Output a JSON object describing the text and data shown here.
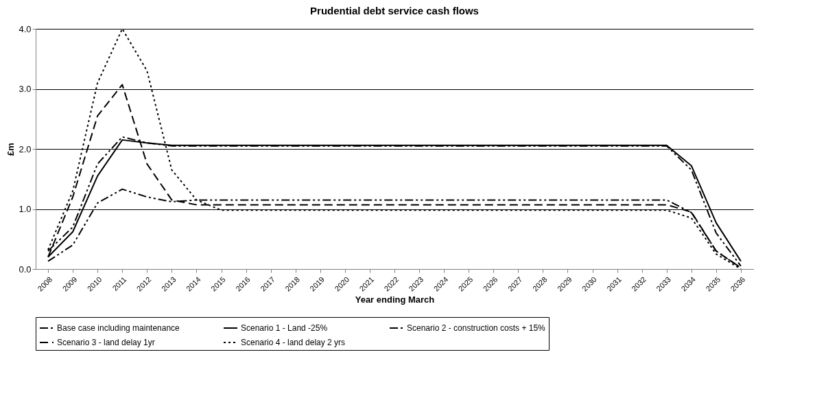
{
  "chart_data": {
    "type": "line",
    "title": "Prudential debt service cash flows",
    "xlabel": "Year ending March",
    "ylabel": "£m",
    "categories": [
      "2008",
      "2009",
      "2010",
      "2011",
      "2012",
      "2013",
      "2014",
      "2015",
      "2016",
      "2017",
      "2018",
      "2019",
      "2020",
      "2021",
      "2022",
      "2023",
      "2024",
      "2025",
      "2026",
      "2027",
      "2028",
      "2029",
      "2030",
      "2031",
      "2032",
      "2033",
      "2034",
      "2035",
      "2036"
    ],
    "ylim": [
      0,
      4
    ],
    "yticks": [
      {
        "value": 0,
        "label": "0.0"
      },
      {
        "value": 1,
        "label": "1.0"
      },
      {
        "value": 2,
        "label": "2.0"
      },
      {
        "value": 3,
        "label": "3.0"
      },
      {
        "value": 4,
        "label": "4.0"
      }
    ],
    "grid": "y",
    "legend": "bottom",
    "marker": "none",
    "series": [
      {
        "name": "Base case including maintenance",
        "color": "#000000",
        "line_style": "dashdot",
        "values": [
          0.13,
          0.4,
          1.1,
          1.33,
          1.2,
          1.12,
          1.15,
          1.15,
          1.15,
          1.15,
          1.15,
          1.15,
          1.15,
          1.15,
          1.15,
          1.15,
          1.15,
          1.15,
          1.15,
          1.15,
          1.15,
          1.15,
          1.15,
          1.15,
          1.15,
          1.15,
          0.94,
          0.3,
          0.02
        ]
      },
      {
        "name": "Scenario 1 - Land -25%",
        "color": "#000000",
        "line_style": "solid",
        "values": [
          0.2,
          0.62,
          1.55,
          2.15,
          2.1,
          2.06,
          2.06,
          2.06,
          2.06,
          2.06,
          2.06,
          2.06,
          2.06,
          2.06,
          2.06,
          2.06,
          2.06,
          2.06,
          2.06,
          2.06,
          2.06,
          2.06,
          2.06,
          2.06,
          2.06,
          2.06,
          1.72,
          0.77,
          0.13
        ]
      },
      {
        "name": "Scenario 2 - construction costs + 15%",
        "color": "#000000",
        "line_style": "dashdot",
        "values": [
          0.3,
          0.7,
          1.75,
          2.2,
          2.1,
          2.05,
          2.05,
          2.05,
          2.05,
          2.05,
          2.05,
          2.05,
          2.05,
          2.05,
          2.05,
          2.05,
          2.05,
          2.05,
          2.05,
          2.05,
          2.05,
          2.05,
          2.05,
          2.05,
          2.05,
          2.05,
          1.65,
          0.6,
          0.05
        ]
      },
      {
        "name": "Scenario 3 - land delay 1yr",
        "color": "#000000",
        "line_style": "dashed",
        "values": [
          0.2,
          1.2,
          2.55,
          3.07,
          1.75,
          1.15,
          1.07,
          1.07,
          1.07,
          1.07,
          1.07,
          1.07,
          1.07,
          1.07,
          1.07,
          1.07,
          1.07,
          1.07,
          1.07,
          1.07,
          1.07,
          1.07,
          1.07,
          1.07,
          1.07,
          1.07,
          0.95,
          0.3,
          0.02
        ]
      },
      {
        "name": "Scenario 4 - land delay 2 yrs",
        "color": "#000000",
        "line_style": "dotted",
        "values": [
          0.32,
          1.3,
          3.1,
          4.0,
          3.3,
          1.65,
          1.15,
          0.98,
          0.98,
          0.98,
          0.98,
          0.98,
          0.98,
          0.98,
          0.98,
          0.98,
          0.98,
          0.98,
          0.98,
          0.98,
          0.98,
          0.98,
          0.98,
          0.98,
          0.98,
          0.98,
          0.85,
          0.25,
          0.0
        ]
      }
    ]
  }
}
